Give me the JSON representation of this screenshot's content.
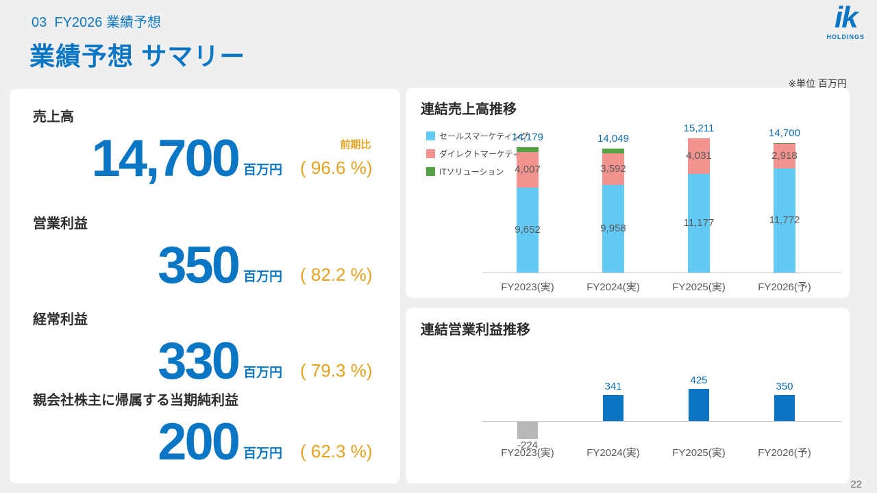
{
  "page": {
    "breadcrumb": "03  FY2026 業績予想",
    "title": "業績予想 サマリー",
    "unit_note": "※単位 百万円",
    "page_number": "22",
    "logo": {
      "text": "ik",
      "sub": "HOLDINGS"
    }
  },
  "colors": {
    "primary_blue": "#0b76c4",
    "accent_orange": "#e5a321",
    "sales_marketing_blue": "#63c9f5",
    "direct_marketing_pink": "#f2938f",
    "it_solution_green": "#55a245",
    "negative_gray": "#b9b9b9"
  },
  "summary": {
    "yoy_label": "前期比",
    "metrics": [
      {
        "label": "売上高",
        "value": "14,700",
        "unit": "百万円",
        "ratio": "( 96.6 %)"
      },
      {
        "label": "営業利益",
        "value": "350",
        "unit": "百万円",
        "ratio": "( 82.2 %)"
      },
      {
        "label": "経常利益",
        "value": "330",
        "unit": "百万円",
        "ratio": "( 79.3 %)"
      },
      {
        "label": "親会社株主に帰属する当期純利益",
        "value": "200",
        "unit": "百万円",
        "ratio": "( 62.3 %)"
      }
    ]
  },
  "chart_data": [
    {
      "type": "bar",
      "stacked": true,
      "title": "連結売上高推移",
      "categories": [
        "FY2023(実)",
        "FY2024(実)",
        "FY2025(実)",
        "FY2026(予)"
      ],
      "series": [
        {
          "name": "セールスマーケティング",
          "color": "#63c9f5",
          "values": [
            9652,
            9958,
            11177,
            11772
          ],
          "labels": [
            "9,652",
            "9,958",
            "11,177",
            "11,772"
          ]
        },
        {
          "name": "ダイレクトマーケティング",
          "color": "#f2938f",
          "values": [
            4007,
            3592,
            4031,
            2918
          ],
          "labels": [
            "4,007",
            "3,592",
            "4,031",
            "2,918"
          ]
        },
        {
          "name": "ITソリューション",
          "color": "#55a245",
          "values": [
            520,
            499,
            3,
            10
          ],
          "labels": null
        }
      ],
      "totals": {
        "values": [
          14179,
          14049,
          15211,
          14700
        ],
        "labels": [
          "14,179",
          "14,049",
          "15,211",
          "14,700"
        ]
      },
      "ylim": [
        0,
        16000
      ],
      "grid": false,
      "legend_position": "top-left"
    },
    {
      "type": "bar",
      "title": "連結営業利益推移",
      "categories": [
        "FY2023(実)",
        "FY2024(実)",
        "FY2025(実)",
        "FY2026(予)"
      ],
      "values": [
        -224,
        341,
        425,
        350
      ],
      "labels": [
        "-224",
        "341",
        "425",
        "350"
      ],
      "bar_colors": [
        "#b9b9b9",
        "#0b76c4",
        "#0b76c4",
        "#0b76c4"
      ],
      "ylim": [
        -300,
        500
      ],
      "grid": false
    }
  ]
}
